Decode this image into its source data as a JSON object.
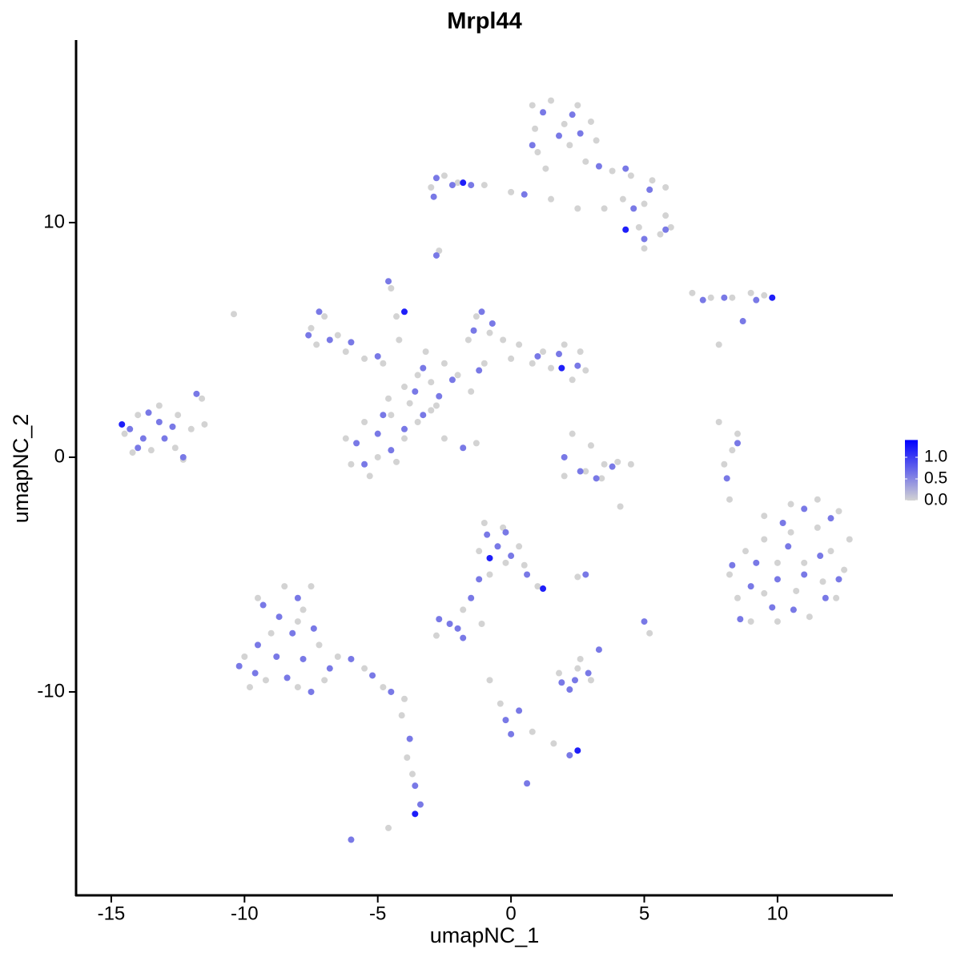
{
  "chart_data": {
    "type": "scatter",
    "title": "Mrpl44",
    "x_label": "umapNC_1",
    "y_label": "umapNC_2",
    "xlim": [
      -16.32,
      14.33
    ],
    "ylim": [
      -18.67,
      17.78
    ],
    "xticks": [
      -15,
      -10,
      -5,
      0,
      5,
      10
    ],
    "yticks": [
      -10,
      0,
      10
    ],
    "colorbar": {
      "low": "#d3d3d3",
      "high": "#0000ff",
      "lim": [
        0,
        1.4
      ],
      "ticks": [
        {
          "value": 0,
          "label": "0.0"
        },
        {
          "value": 0.5,
          "label": "0.5"
        },
        {
          "value": 1,
          "label": "1.0"
        }
      ]
    },
    "x": [
      0.8,
      1.5,
      2.5,
      3,
      0.9,
      2,
      3.2,
      1,
      2.2,
      1.3,
      2.8,
      3.8,
      4.5,
      5.3,
      5.8,
      4.2,
      5,
      5.8,
      4.8,
      5.6,
      5,
      3.5,
      0,
      -1,
      -2,
      -3,
      -2.5,
      1.5,
      2.5,
      6,
      1.2,
      2.3,
      1.8,
      0.8,
      2.6,
      3.3,
      4.3,
      5.2,
      4.6,
      5.8,
      5,
      -2.8,
      -2.2,
      -1.5,
      -2.9,
      0.5,
      4.3,
      -1.8,
      -2.7,
      -2.8,
      6.8,
      7.5,
      8.3,
      9,
      9.5,
      7.2,
      8,
      9.2,
      9.8,
      8.7,
      7.8,
      -14.5,
      -14,
      -13.2,
      -12.5,
      -13.5,
      -12.6,
      -14.2,
      -12,
      -11.5,
      -11.6,
      -12.3,
      -14.3,
      -13.8,
      -13.2,
      -13,
      -12.7,
      -13.6,
      -14,
      -12.3,
      -11.8,
      -14.6,
      -7.5,
      -7,
      -6.5,
      -7.3,
      -6.2,
      -5.5,
      -4.8,
      -7.2,
      -7.6,
      -6.8,
      -6,
      -5,
      -4.5,
      -4.3,
      -4.2,
      -4.6,
      -4,
      -3.5,
      -4,
      -3,
      -2.5,
      -3.8,
      -2,
      -1,
      0,
      -2.8,
      -1.5,
      -3.2,
      -3.3,
      -2.2,
      -1.2,
      -3.6,
      -2.7,
      -1.3,
      -0.8,
      -0.3,
      -1.6,
      0.3,
      -1.1,
      -0.7,
      -1.4,
      1.2,
      2,
      2.6,
      2.8,
      1.5,
      0.8,
      2.3,
      1.8,
      2.5,
      1,
      1.9,
      -6.2,
      -5.5,
      -4.5,
      -4,
      -5,
      -6,
      -4.3,
      -5.3,
      -3.5,
      -3,
      -4.6,
      -5.8,
      -5,
      -4.5,
      -5.5,
      -4.8,
      -4,
      -3.3,
      -2.5,
      -1.8,
      -1.3,
      2.3,
      3,
      3.5,
      4,
      4.5,
      2.8,
      3.4,
      2,
      3.2,
      2.6,
      3.8,
      2,
      4.1,
      8.5,
      8.3,
      8,
      8.5,
      8.1,
      7.8,
      8.2,
      9.5,
      10.5,
      11.5,
      12.3,
      12.7,
      12.5,
      12.2,
      11.2,
      10,
      9,
      8.5,
      8.2,
      8.8,
      9.5,
      10.5,
      11.5,
      10,
      11,
      12,
      9.5,
      10.7,
      11.7,
      10.2,
      11,
      12,
      9.2,
      10.4,
      11.6,
      12.3,
      9,
      10,
      11,
      11.8,
      9.8,
      8.6,
      10.6,
      8.3,
      -9.5,
      -8.5,
      -7.5,
      -9,
      -8,
      -10,
      -9.2,
      -8,
      -7,
      -7.2,
      -6.5,
      -5.5,
      -4.8,
      -4,
      -9.8,
      -7.8,
      -9.3,
      -8.7,
      -8.2,
      -9.5,
      -8.8,
      -7.8,
      -9.6,
      -8.4,
      -7.4,
      -6.8,
      -6,
      -5.2,
      -4.5,
      -8,
      -10.2,
      -7.5,
      -4.1,
      -3.8,
      -3.7,
      -3.6,
      -3.4,
      -3.6,
      -3.9,
      -6,
      -4.6,
      -1,
      -0.3,
      -1.2,
      -0.2,
      0.5,
      1,
      -0.8,
      0.3,
      -0.9,
      -0.5,
      0,
      0.6,
      -0.8,
      1.2,
      -0.2,
      -1.2,
      -1.5,
      -1.8,
      -2.7,
      -2.3,
      -2.8,
      -2,
      -1.1,
      1.8,
      2.5,
      3,
      2.6,
      1.9,
      2.4,
      2.9,
      2.2,
      -0.8,
      -0.4,
      -0.2,
      0,
      0.8,
      1.6,
      2.5,
      2.2,
      0.3,
      5,
      5.2,
      3.3,
      2.8,
      2.5,
      0.6,
      -10.4,
      -1.8
    ],
    "y": [
      15,
      15.2,
      15,
      14.3,
      14,
      14.2,
      13.5,
      13,
      13.3,
      12.3,
      12.6,
      12.2,
      12,
      11.8,
      11.5,
      11,
      10.8,
      10.3,
      9.8,
      9.5,
      8.9,
      10.6,
      11.3,
      11.6,
      11.7,
      11.5,
      12,
      11,
      10.6,
      9.8,
      14.7,
      14.6,
      13.7,
      13.3,
      13.8,
      12.4,
      12.3,
      11.4,
      10.6,
      9.7,
      9.3,
      11.9,
      11.6,
      11.6,
      11.1,
      11.2,
      9.7,
      11.7,
      8.8,
      8.6,
      7,
      6.8,
      6.8,
      7,
      6.9,
      6.7,
      6.8,
      6.7,
      6.8,
      5.8,
      4.8,
      1,
      1.8,
      2.2,
      1.8,
      0.3,
      0.4,
      0.2,
      1.2,
      1.4,
      2.5,
      -0.1,
      1.2,
      0.8,
      1.5,
      0.8,
      1.3,
      1.9,
      0.4,
      0,
      2.7,
      1.4,
      5.5,
      6,
      5.2,
      4.8,
      4.5,
      4.2,
      4,
      6.2,
      5.2,
      5,
      4.9,
      4.3,
      7.2,
      6,
      5,
      7.5,
      6.2,
      3.5,
      3,
      3.2,
      4,
      2.3,
      3.5,
      4,
      4.2,
      2.2,
      2.8,
      4.5,
      3.8,
      3.3,
      3.7,
      2.8,
      2.6,
      6,
      5.3,
      5,
      5,
      4.8,
      6.2,
      5.7,
      5.4,
      4.5,
      4.8,
      4.5,
      3.7,
      3.8,
      4,
      3.3,
      4.4,
      3.9,
      4.3,
      3.8,
      0.8,
      1.5,
      1.8,
      0.8,
      0,
      -0.3,
      -0.2,
      -0.8,
      1.5,
      2,
      2.5,
      0.6,
      1,
      0.3,
      -0.3,
      1.8,
      1.2,
      1.8,
      0.8,
      0.4,
      0.6,
      1,
      0.5,
      -0.3,
      -0.2,
      -0.3,
      -0.6,
      -0.9,
      -0.8,
      -0.9,
      -0.6,
      -0.4,
      0,
      -2.1,
      1,
      0.3,
      -0.3,
      0.6,
      -0.9,
      1.5,
      -1.8,
      -2.5,
      -2,
      -1.8,
      -2.3,
      -3.5,
      -4.8,
      -6,
      -6.8,
      -7,
      -7,
      -6,
      -5,
      -4,
      -3.5,
      -3.2,
      -3,
      -4.5,
      -4.5,
      -4,
      -5.8,
      -5.7,
      -5.3,
      -2.8,
      -2.2,
      -2.6,
      -4.5,
      -3.8,
      -4.2,
      -5.2,
      -5.5,
      -5.2,
      -5,
      -6,
      -6.4,
      -6.9,
      -6.5,
      -4.6,
      -6,
      -5.5,
      -5.5,
      -7.5,
      -7,
      -8.5,
      -9.5,
      -9.8,
      -9.5,
      -8,
      -8.5,
      -9,
      -9.8,
      -10.3,
      -9.8,
      -6.5,
      -6.3,
      -6.8,
      -7.5,
      -8,
      -8.5,
      -8.6,
      -9.2,
      -9.4,
      -7.3,
      -9,
      -8.6,
      -9.3,
      -10,
      -6,
      -8.9,
      -10,
      -11,
      -12,
      -13.5,
      -14,
      -14.8,
      -15.2,
      -12.8,
      -16.3,
      -15.8,
      -2.8,
      -3,
      -4,
      -4.5,
      -4.6,
      -5.5,
      -5,
      -3.8,
      -3.3,
      -3.8,
      -4.2,
      -5,
      -4.3,
      -5.6,
      -3.2,
      -5.2,
      -6,
      -6.5,
      -6.9,
      -7.1,
      -7.6,
      -7.3,
      -7.1,
      -9.2,
      -9,
      -9.5,
      -8.6,
      -9.6,
      -9.5,
      -9.2,
      -9.9,
      -9.5,
      -10.5,
      -11.2,
      -11.8,
      -11.7,
      -12.2,
      -12.5,
      -12.7,
      -10.8,
      -7,
      -7.5,
      -8.2,
      -5,
      -5.1,
      -13.9,
      6.1,
      -7.7
    ],
    "values": [
      0,
      0,
      0,
      0,
      0,
      0,
      0,
      0,
      0,
      0,
      0,
      0,
      0,
      0,
      0,
      0,
      0,
      0,
      0,
      0,
      0,
      0,
      0,
      0,
      0,
      0,
      0,
      0,
      0,
      0,
      0.6,
      0.6,
      0.6,
      0.6,
      0.6,
      0.6,
      0.6,
      0.6,
      0.6,
      0.6,
      0.6,
      0.6,
      0.6,
      0.6,
      0.6,
      0.6,
      1.2,
      1.2,
      0,
      0.6,
      0,
      0,
      0,
      0,
      0,
      0.6,
      0.6,
      0.6,
      1.2,
      0.6,
      0,
      0,
      0,
      0,
      0,
      0,
      0,
      0,
      0,
      0,
      0,
      0,
      0.6,
      0.6,
      0.6,
      0.6,
      0.6,
      0.6,
      0.6,
      0.6,
      0.6,
      1.2,
      0,
      0,
      0,
      0,
      0,
      0,
      0,
      0.6,
      0.6,
      0.6,
      0.6,
      0.6,
      0,
      0,
      0,
      0.6,
      1.2,
      0,
      0,
      0,
      0,
      0,
      0,
      0,
      0,
      0,
      0,
      0,
      0.6,
      0.6,
      0.6,
      0.6,
      0.6,
      0,
      0,
      0,
      0,
      0,
      0.6,
      0.6,
      0.6,
      0,
      0,
      0,
      0,
      0,
      0,
      0,
      0.6,
      0.6,
      0.6,
      1.2,
      0,
      0,
      0,
      0,
      0,
      0,
      0,
      0,
      0,
      0,
      0,
      0.6,
      0.6,
      0.6,
      0.6,
      0.6,
      0.6,
      0.6,
      0,
      0.6,
      0,
      0,
      0,
      0,
      0,
      0,
      0,
      0,
      0,
      0.6,
      0.6,
      0.6,
      0.6,
      0,
      0,
      0,
      0,
      0.6,
      0.6,
      0,
      0,
      0,
      0,
      0,
      0,
      0,
      0,
      0,
      0,
      0,
      0,
      0,
      0,
      0,
      0,
      0,
      0,
      0,
      0,
      0,
      0,
      0,
      0,
      0.6,
      0.6,
      0.6,
      0.6,
      0.6,
      0.6,
      0.6,
      0.6,
      0.6,
      0.6,
      0.6,
      0.6,
      0.6,
      0.6,
      0.6,
      0,
      0,
      0,
      0,
      0,
      0,
      0,
      0,
      0,
      0,
      0,
      0,
      0,
      0,
      0,
      0,
      0.6,
      0.6,
      0.6,
      0.6,
      0.6,
      0.6,
      0.6,
      0.6,
      0.6,
      0.6,
      0.6,
      0.6,
      0.6,
      0.6,
      0.6,
      0.6,
      0,
      0.6,
      0,
      0.6,
      0.6,
      1.2,
      0,
      0.6,
      0,
      0,
      0,
      0,
      0,
      0,
      0,
      0,
      0,
      0.6,
      0.6,
      0.6,
      0.6,
      1.2,
      1.2,
      0.6,
      0.6,
      0.6,
      0,
      0.6,
      0.6,
      0,
      0.6,
      0,
      0,
      0,
      0,
      0,
      0.6,
      0.6,
      0.6,
      0.6,
      0,
      0,
      0.6,
      0.6,
      0,
      0,
      1.2,
      0.6,
      0.6,
      0.6,
      0,
      0.6,
      0.6,
      0,
      0.6,
      0,
      0.6
    ]
  }
}
